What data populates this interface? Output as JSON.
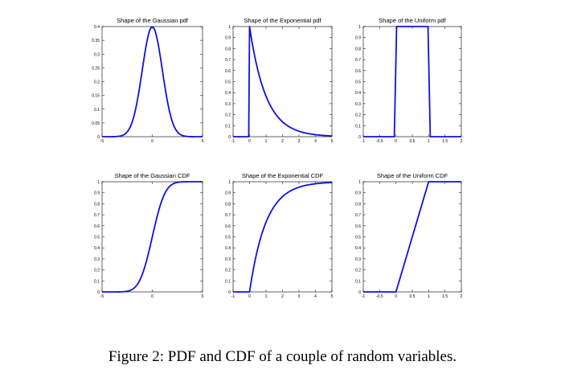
{
  "caption": "Figure 2: PDF and CDF of a couple of random variables.",
  "colors": {
    "curve": "#1010e0",
    "axes": "#000000",
    "background": "#ffffff"
  },
  "chart_data": [
    {
      "type": "line",
      "distribution": "gaussian",
      "function": "pdf",
      "title": "Shape of the Gaussian pdf",
      "xlim": [
        -5,
        5
      ],
      "ylim": [
        0,
        0.4
      ],
      "xticks": [
        -5,
        0,
        5
      ],
      "xtick_labels": [
        "-5",
        "0",
        "5"
      ],
      "yticks": [
        0,
        0.05,
        0.1,
        0.15,
        0.2,
        0.25,
        0.3,
        0.35,
        0.4
      ],
      "ytick_labels": [
        "0",
        "0.05",
        "0.1",
        "0.15",
        "0.2",
        "0.25",
        "0.3",
        "0.35",
        "0.4"
      ],
      "x": [
        -5,
        -4,
        -3,
        -2.5,
        -2,
        -1.5,
        -1,
        -0.5,
        0,
        0.5,
        1,
        1.5,
        2,
        2.5,
        3,
        4,
        5
      ],
      "y": [
        0,
        0,
        0.004,
        0.018,
        0.054,
        0.13,
        0.242,
        0.352,
        0.399,
        0.352,
        0.242,
        0.13,
        0.054,
        0.018,
        0.004,
        0,
        0
      ],
      "grid": false
    },
    {
      "type": "line",
      "distribution": "exponential",
      "function": "pdf",
      "title": "Shape of the Exponential pdf",
      "xlim": [
        -1,
        5
      ],
      "ylim": [
        0,
        1
      ],
      "xticks": [
        -1,
        0,
        1,
        2,
        3,
        4,
        5
      ],
      "xtick_labels": [
        "-1",
        "0",
        "1",
        "2",
        "3",
        "4",
        "5"
      ],
      "yticks": [
        0,
        0.1,
        0.2,
        0.3,
        0.4,
        0.5,
        0.6,
        0.7,
        0.8,
        0.9,
        1
      ],
      "ytick_labels": [
        "0",
        "0.1",
        "0.2",
        "0.3",
        "0.4",
        "0.5",
        "0.6",
        "0.7",
        "0.8",
        "0.9",
        "1"
      ],
      "x": [
        -1,
        -0.05,
        0,
        0.25,
        0.5,
        0.75,
        1,
        1.5,
        2,
        2.5,
        3,
        3.5,
        4,
        4.5,
        5
      ],
      "y": [
        0,
        0,
        1,
        0.779,
        0.607,
        0.472,
        0.368,
        0.223,
        0.135,
        0.082,
        0.05,
        0.03,
        0.018,
        0.011,
        0.007
      ],
      "grid": false
    },
    {
      "type": "line",
      "distribution": "uniform",
      "function": "pdf",
      "title": "Shape of the Uniform pdf",
      "xlim": [
        -1,
        2
      ],
      "ylim": [
        0,
        1
      ],
      "xticks": [
        -1,
        -0.5,
        0,
        0.5,
        1,
        1.5,
        2
      ],
      "xtick_labels": [
        "-1",
        "-0.5",
        "0",
        "0.5",
        "1",
        "1.5",
        "2"
      ],
      "yticks": [
        0,
        0.1,
        0.2,
        0.3,
        0.4,
        0.5,
        0.6,
        0.7,
        0.8,
        0.9,
        1
      ],
      "ytick_labels": [
        "0",
        "0.1",
        "0.2",
        "0.3",
        "0.4",
        "0.5",
        "0.6",
        "0.7",
        "0.8",
        "0.9",
        "1"
      ],
      "x": [
        -1,
        -0.05,
        0.02,
        0.98,
        1.05,
        2
      ],
      "y": [
        0,
        0,
        1,
        1,
        0,
        0
      ],
      "grid": false
    },
    {
      "type": "line",
      "distribution": "gaussian",
      "function": "cdf",
      "title": "Shape of the Gaussian CDF",
      "xlim": [
        -5,
        5
      ],
      "ylim": [
        0,
        1
      ],
      "xticks": [
        -5,
        0,
        5
      ],
      "xtick_labels": [
        "-5",
        "0",
        "5"
      ],
      "yticks": [
        0,
        0.1,
        0.2,
        0.3,
        0.4,
        0.5,
        0.6,
        0.7,
        0.8,
        0.9,
        1
      ],
      "ytick_labels": [
        "0",
        "0.1",
        "0.2",
        "0.3",
        "0.4",
        "0.5",
        "0.6",
        "0.7",
        "0.8",
        "0.9",
        "1"
      ],
      "x": [
        -5,
        -4,
        -3,
        -2.5,
        -2,
        -1.5,
        -1,
        -0.5,
        0,
        0.5,
        1,
        1.5,
        2,
        2.5,
        3,
        4,
        5
      ],
      "y": [
        0,
        0,
        0.001,
        0.006,
        0.023,
        0.067,
        0.159,
        0.309,
        0.5,
        0.691,
        0.841,
        0.933,
        0.977,
        0.994,
        0.999,
        1,
        1
      ],
      "grid": false
    },
    {
      "type": "line",
      "distribution": "exponential",
      "function": "cdf",
      "title": "Shape of the Exponential CDF",
      "xlim": [
        -1,
        5
      ],
      "ylim": [
        0,
        1
      ],
      "xticks": [
        -1,
        0,
        1,
        2,
        3,
        4,
        5
      ],
      "xtick_labels": [
        "-1",
        "0",
        "1",
        "2",
        "3",
        "4",
        "5"
      ],
      "yticks": [
        0,
        0.1,
        0.2,
        0.3,
        0.4,
        0.5,
        0.6,
        0.7,
        0.8,
        0.9,
        1
      ],
      "ytick_labels": [
        "0",
        "0.1",
        "0.2",
        "0.3",
        "0.4",
        "0.5",
        "0.6",
        "0.7",
        "0.8",
        "0.9",
        "1"
      ],
      "x": [
        -1,
        0,
        0.25,
        0.5,
        0.75,
        1,
        1.5,
        2,
        2.5,
        3,
        3.5,
        4,
        4.5,
        5
      ],
      "y": [
        0,
        0,
        0.221,
        0.393,
        0.528,
        0.632,
        0.777,
        0.865,
        0.918,
        0.95,
        0.97,
        0.982,
        0.989,
        0.993
      ],
      "grid": false
    },
    {
      "type": "line",
      "distribution": "uniform",
      "function": "cdf",
      "title": "Shape of the Uniform CDF",
      "xlim": [
        -1,
        2
      ],
      "ylim": [
        0,
        1
      ],
      "xticks": [
        -1,
        -0.5,
        0,
        0.5,
        1,
        1.5,
        2
      ],
      "xtick_labels": [
        "-1",
        "-0.5",
        "0",
        "0.5",
        "1",
        "1.5",
        "2"
      ],
      "yticks": [
        0,
        0.1,
        0.2,
        0.3,
        0.4,
        0.5,
        0.6,
        0.7,
        0.8,
        0.9,
        1
      ],
      "ytick_labels": [
        "0",
        "0.1",
        "0.2",
        "0.3",
        "0.4",
        "0.5",
        "0.6",
        "0.7",
        "0.8",
        "0.9",
        "1"
      ],
      "x": [
        -1,
        0,
        1,
        2
      ],
      "y": [
        0,
        0,
        1,
        1
      ],
      "grid": false
    }
  ]
}
